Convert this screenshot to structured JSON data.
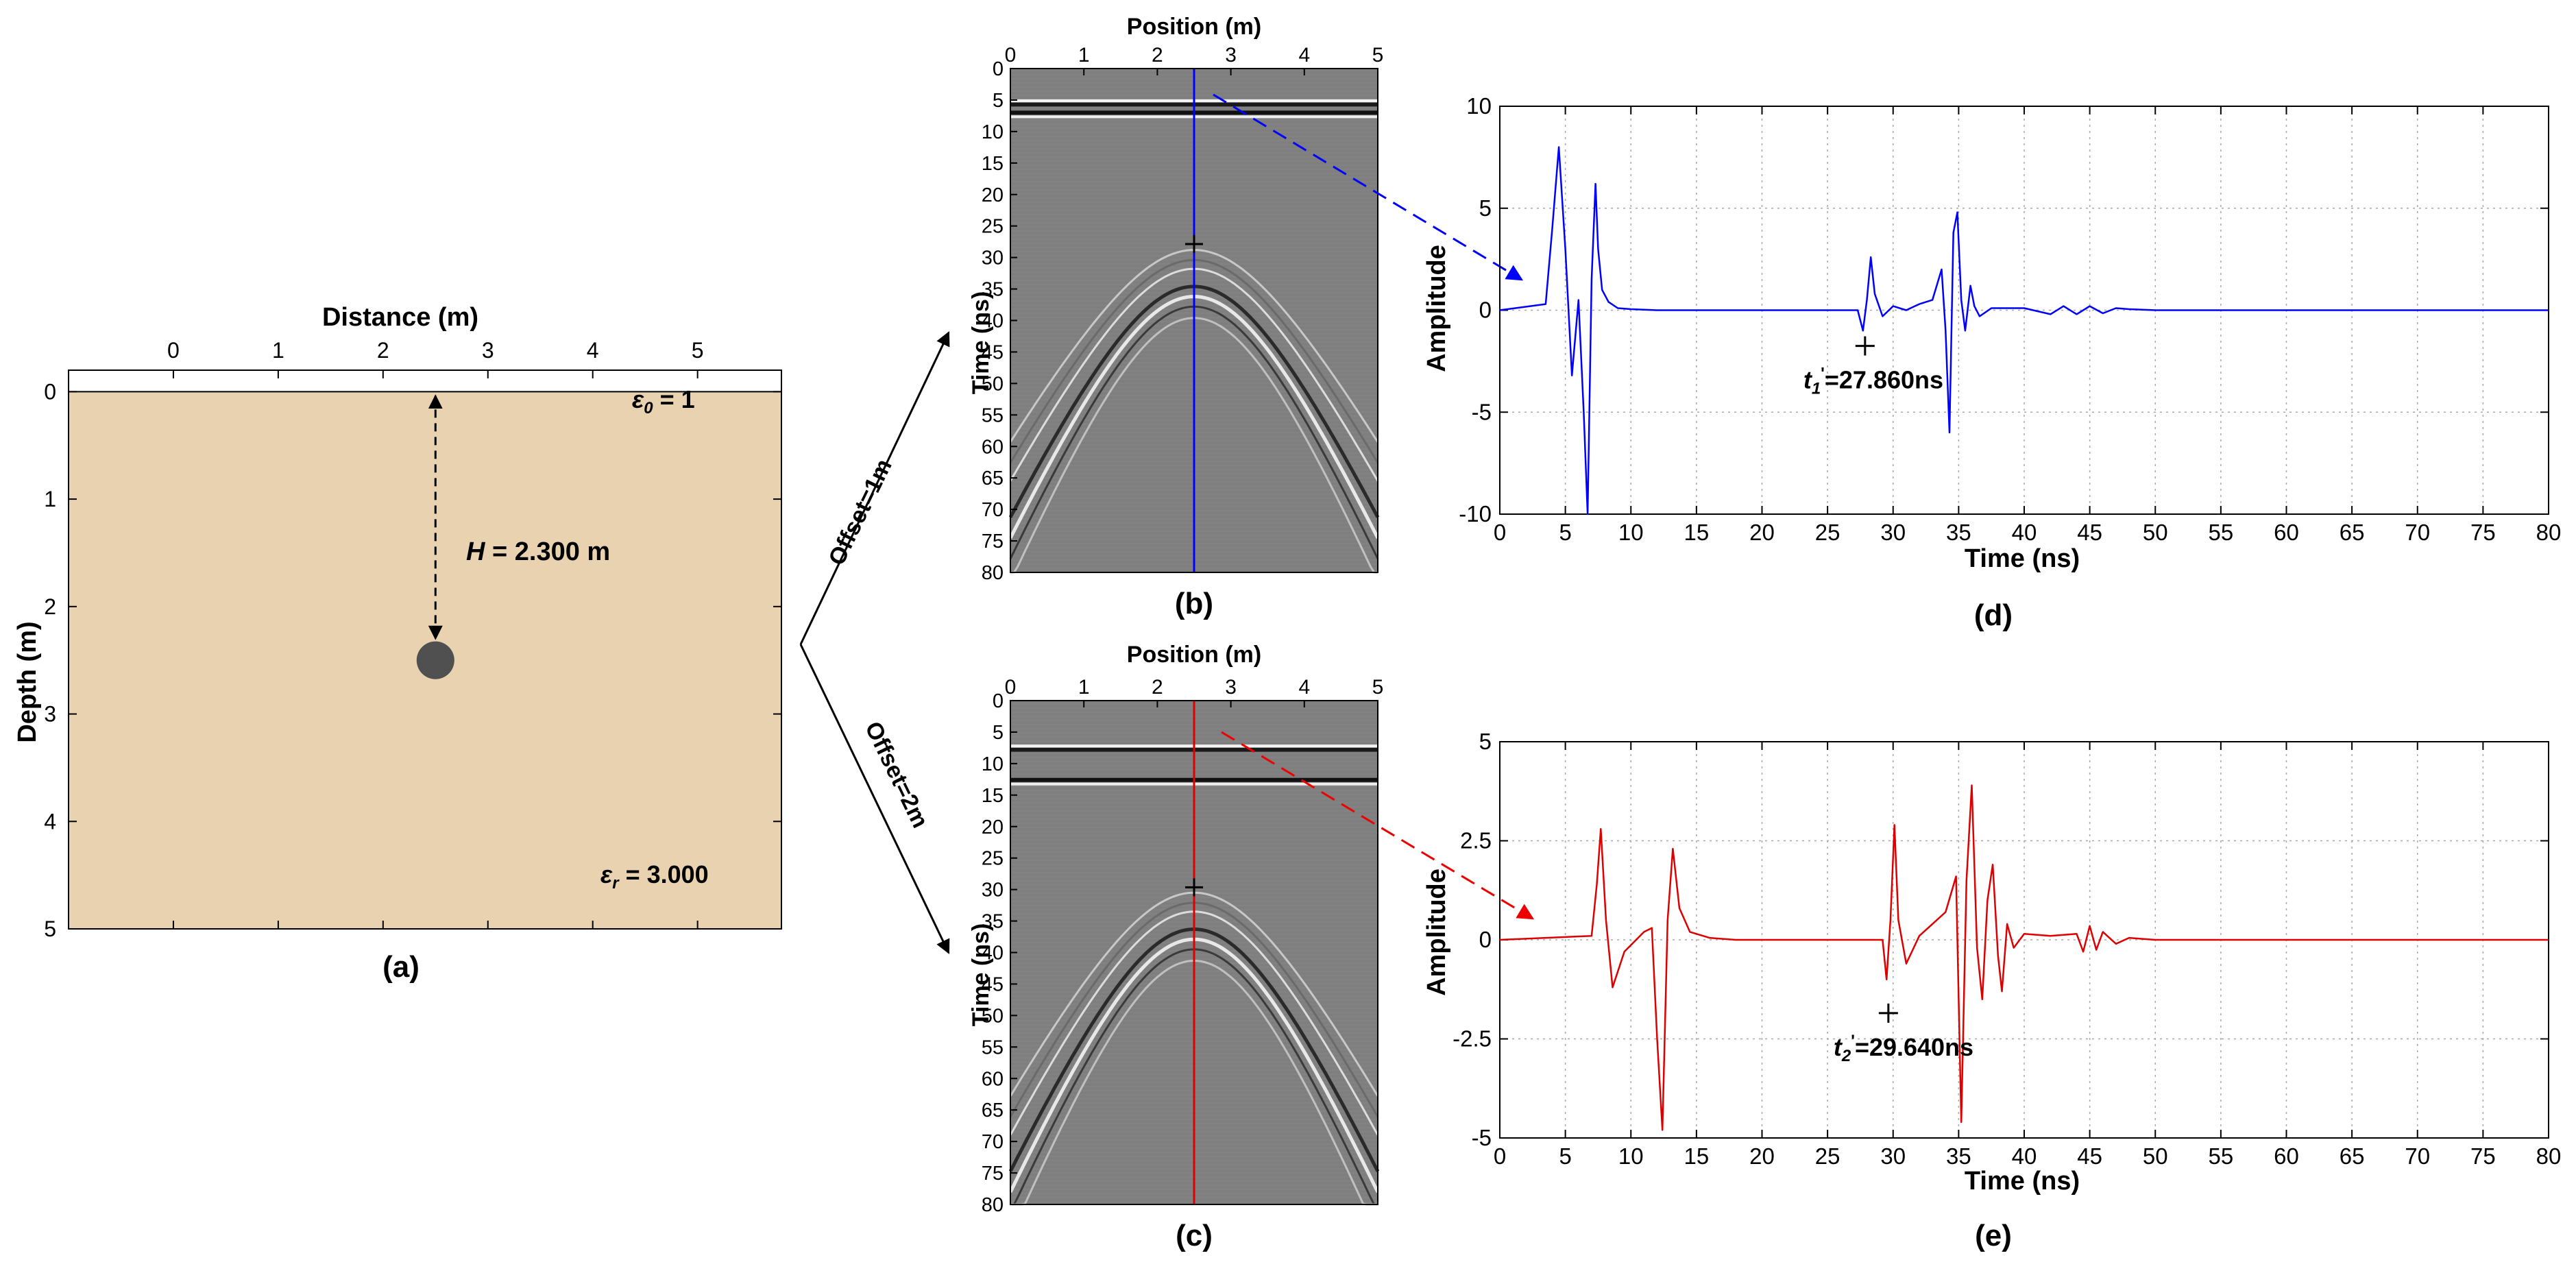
{
  "model": {
    "xlabel": "Distance (m)",
    "ylabel": "Depth (m)",
    "x_ticks": [
      0,
      1,
      2,
      3,
      4,
      5
    ],
    "y_ticks": [
      0,
      1,
      2,
      3,
      4,
      5
    ],
    "xlim": [
      -1,
      5.8
    ],
    "ylim": [
      -0.2,
      5
    ],
    "eps0_symbol": "ε",
    "eps0_sub": "0",
    "eps0_value": " = 1",
    "h_symbol": "H",
    "h_value": " = 2.300 m",
    "epsr_symbol": "ε",
    "epsr_sub": "r",
    "epsr_value": " = 3.000",
    "target": {
      "x": 2.5,
      "depth": 2.5,
      "radius": 0.18
    },
    "caption": "(a)",
    "soil_color": "#e8d2b0",
    "target_color": "#505050"
  },
  "arrows": {
    "upper_label": "Offset=1m",
    "lower_label": "Offset=2m"
  },
  "radargrams": [
    {
      "xlabel": "Position (m)",
      "ylabel": "Time (ns)",
      "x_ticks": [
        0,
        1,
        2,
        3,
        4,
        5
      ],
      "y_ticks": [
        0,
        5,
        10,
        15,
        20,
        25,
        30,
        35,
        40,
        45,
        50,
        55,
        60,
        65,
        70,
        75,
        80
      ],
      "xlim": [
        0,
        5
      ],
      "ylim": [
        0,
        80
      ],
      "trace_position": 2.5,
      "direct_wave_times": [
        5.7,
        7.0
      ],
      "apex_time": 27.86,
      "hyperbola_apex_times": [
        28.8,
        34.9
      ],
      "line_color": "#0000ff",
      "caption": "(b)"
    },
    {
      "xlabel": "Position (m)",
      "ylabel": "Time (ns)",
      "x_ticks": [
        0,
        1,
        2,
        3,
        4,
        5
      ],
      "y_ticks": [
        0,
        5,
        10,
        15,
        20,
        25,
        30,
        35,
        40,
        45,
        50,
        55,
        60,
        65,
        70,
        75,
        80
      ],
      "xlim": [
        0,
        5
      ],
      "ylim": [
        0,
        80
      ],
      "trace_position": 2.5,
      "direct_wave_times": [
        7.8,
        12.6
      ],
      "apex_time": 29.64,
      "hyperbola_apex_times": [
        30.5,
        36.4
      ],
      "line_color": "#dd0000",
      "caption": "(c)"
    }
  ],
  "chart_data": [
    {
      "type": "line",
      "xlabel": "Time (ns)",
      "ylabel": "Amplitude",
      "xlim": [
        0,
        80
      ],
      "ylim": [
        -10,
        10
      ],
      "x_ticks": [
        0,
        5,
        10,
        15,
        20,
        25,
        30,
        35,
        40,
        45,
        50,
        55,
        60,
        65,
        70,
        75,
        80
      ],
      "y_ticks": [
        -10,
        -5,
        0,
        5,
        10
      ],
      "y_tick_labels": [
        "-10",
        "-5",
        "0",
        "5",
        "10"
      ],
      "grid": true,
      "color": "#0000ff",
      "x": [
        0,
        3.5,
        4.0,
        4.5,
        5.0,
        5.5,
        6.0,
        6.4,
        6.7,
        7.0,
        7.3,
        7.5,
        7.8,
        8.3,
        9.0,
        10,
        12,
        27.3,
        27.7,
        28.0,
        28.3,
        28.6,
        29.2,
        30.0,
        31.0,
        32.0,
        33.0,
        33.7,
        34.0,
        34.3,
        34.6,
        34.9,
        35.2,
        35.5,
        35.9,
        36.2,
        36.6,
        37.5,
        40,
        42,
        43,
        44,
        45,
        46,
        47,
        48,
        50,
        80
      ],
      "y": [
        0,
        0.3,
        4.0,
        8.0,
        3.0,
        -3.2,
        0.5,
        -5.0,
        -10.5,
        1.5,
        6.2,
        3.0,
        1.0,
        0.4,
        0.1,
        0.05,
        0,
        0,
        -1.0,
        0.5,
        2.6,
        0.8,
        -0.3,
        0.2,
        0,
        0.3,
        0.5,
        2.0,
        -1.0,
        -6.0,
        3.8,
        4.8,
        0.5,
        -1.0,
        1.2,
        0.2,
        -0.3,
        0.1,
        0.1,
        -0.2,
        0.2,
        -0.2,
        0.2,
        -0.15,
        0.1,
        0.05,
        0,
        0
      ],
      "pick": {
        "time": 27.86,
        "amplitude": -1.75
      },
      "pick_label_symbol": "t",
      "pick_label_sub": "1",
      "pick_label_prime": "'",
      "pick_label_value": "=27.860ns",
      "caption": "(d)"
    },
    {
      "type": "line",
      "xlabel": "Time (ns)",
      "ylabel": "Amplitude",
      "xlim": [
        0,
        80
      ],
      "ylim": [
        -5,
        5
      ],
      "x_ticks": [
        0,
        5,
        10,
        15,
        20,
        25,
        30,
        35,
        40,
        45,
        50,
        55,
        60,
        65,
        70,
        75,
        80
      ],
      "y_ticks": [
        -5,
        -2.5,
        0,
        2.5,
        5
      ],
      "y_tick_labels": [
        "-5",
        "-2.5",
        "0",
        "2.5",
        "5"
      ],
      "grid": true,
      "color": "#dd0000",
      "x": [
        0,
        7.0,
        7.4,
        7.7,
        8.1,
        8.6,
        9.5,
        11.0,
        11.6,
        12.0,
        12.4,
        12.8,
        13.2,
        13.7,
        14.5,
        16,
        18,
        29.2,
        29.5,
        29.8,
        30.1,
        30.4,
        31.0,
        32.0,
        33.0,
        34.0,
        34.8,
        35.2,
        35.6,
        36.0,
        36.4,
        36.8,
        37.2,
        37.6,
        38.0,
        38.3,
        38.7,
        39.2,
        40,
        42,
        44,
        44.5,
        45,
        45.5,
        46,
        47,
        48,
        50,
        80
      ],
      "y": [
        0,
        0.1,
        1.4,
        2.8,
        0.5,
        -1.2,
        -0.3,
        0.2,
        0.3,
        -2.5,
        -4.8,
        0.5,
        2.3,
        0.8,
        0.2,
        0.05,
        0,
        0,
        -1.0,
        0.5,
        2.9,
        0.5,
        -0.6,
        0.1,
        0.4,
        0.7,
        1.6,
        -4.6,
        1.5,
        3.9,
        -0.2,
        -1.5,
        1.0,
        1.9,
        -0.4,
        -1.3,
        0.4,
        -0.2,
        0.15,
        0.1,
        0.15,
        -0.3,
        0.35,
        -0.25,
        0.2,
        -0.1,
        0.05,
        0,
        0
      ],
      "pick": {
        "time": 29.64,
        "amplitude": -1.85
      },
      "pick_label_symbol": "t",
      "pick_label_sub": "2",
      "pick_label_prime": "'",
      "pick_label_value": "=29.640ns",
      "caption": "(e)"
    }
  ]
}
